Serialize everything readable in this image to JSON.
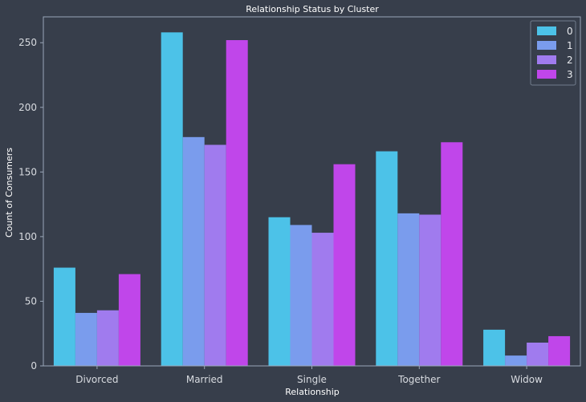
{
  "chart_data": {
    "type": "bar",
    "title": "Relationship Status by Cluster",
    "xlabel": "Relationship",
    "ylabel": "Count of Consumers",
    "categories": [
      "Divorced",
      "Married",
      "Single",
      "Together",
      "Widow"
    ],
    "yticks": [
      0,
      50,
      100,
      150,
      200,
      250
    ],
    "ylim": [
      0,
      270
    ],
    "grid": false,
    "legend": {
      "placement": "top-right"
    },
    "series": [
      {
        "name": "0",
        "color": "#4cc2e8",
        "values": [
          76,
          258,
          115,
          166,
          28
        ]
      },
      {
        "name": "1",
        "color": "#7a9ced",
        "values": [
          41,
          177,
          109,
          118,
          8
        ]
      },
      {
        "name": "2",
        "color": "#a07bee",
        "values": [
          43,
          171,
          103,
          117,
          18
        ]
      },
      {
        "name": "3",
        "color": "#c046ea",
        "values": [
          71,
          252,
          156,
          173,
          23
        ]
      }
    ]
  }
}
